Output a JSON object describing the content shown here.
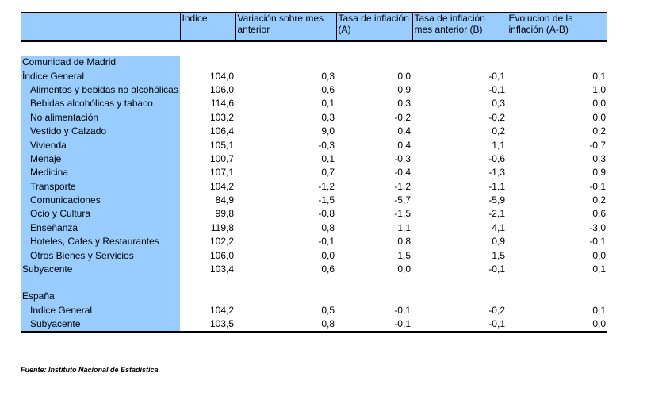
{
  "columns": [
    "",
    "Indice",
    "Variación sobre mes anterior",
    "Tasa de inflación (A)",
    "Tasa de inflación mes anterior (B)",
    "Evolucion de la inflación (A-B)"
  ],
  "madrid": {
    "title": "Comunidad de Madrid",
    "general": {
      "label": "Índice General",
      "indice": "104,0",
      "variacion": "0,3",
      "tasa_a": "0,0",
      "tasa_b": "-0,1",
      "evolucion": "0,1"
    },
    "rows": [
      {
        "label": "Alimentos y bebidas no alcohólicas",
        "indice": "106,0",
        "variacion": "0,6",
        "tasa_a": "0,9",
        "tasa_b": "-0,1",
        "evolucion": "1,0"
      },
      {
        "label": "Bebidas alcohólicas y tabaco",
        "indice": "114,6",
        "variacion": "0,1",
        "tasa_a": "0,3",
        "tasa_b": "0,3",
        "evolucion": "0,0"
      },
      {
        "label": "No alimentación",
        "indice": "103,2",
        "variacion": "0,3",
        "tasa_a": "-0,2",
        "tasa_b": "-0,2",
        "evolucion": "0,0"
      },
      {
        "label": "Vestido y Calzado",
        "indice": "106,4",
        "variacion": "9,0",
        "tasa_a": "0,4",
        "tasa_b": "0,2",
        "evolucion": "0,2"
      },
      {
        "label": "Vivienda",
        "indice": "105,1",
        "variacion": "-0,3",
        "tasa_a": "0,4",
        "tasa_b": "1,1",
        "evolucion": "-0,7"
      },
      {
        "label": "Menaje",
        "indice": "100,7",
        "variacion": "0,1",
        "tasa_a": "-0,3",
        "tasa_b": "-0,6",
        "evolucion": "0,3"
      },
      {
        "label": "Medicina",
        "indice": "107,1",
        "variacion": "0,7",
        "tasa_a": "-0,4",
        "tasa_b": "-1,3",
        "evolucion": "0,9"
      },
      {
        "label": "Transporte",
        "indice": "104,2",
        "variacion": "-1,2",
        "tasa_a": "-1,2",
        "tasa_b": "-1,1",
        "evolucion": "-0,1"
      },
      {
        "label": "Comunicaciones",
        "indice": "84,9",
        "variacion": "-1,5",
        "tasa_a": "-5,7",
        "tasa_b": "-5,9",
        "evolucion": "0,2"
      },
      {
        "label": "Ocio y Cultura",
        "indice": "99,8",
        "variacion": "-0,8",
        "tasa_a": "-1,5",
        "tasa_b": "-2,1",
        "evolucion": "0,6"
      },
      {
        "label": "Enseñanza",
        "indice": "119,8",
        "variacion": "0,8",
        "tasa_a": "1,1",
        "tasa_b": "4,1",
        "evolucion": "-3,0"
      },
      {
        "label": "Hoteles, Cafes y Restaurantes",
        "indice": "102,2",
        "variacion": "-0,1",
        "tasa_a": "0,8",
        "tasa_b": "0,9",
        "evolucion": "-0,1"
      },
      {
        "label": "Otros Bienes y Servicios",
        "indice": "106,0",
        "variacion": "0,0",
        "tasa_a": "1,5",
        "tasa_b": "1,5",
        "evolucion": "0,0"
      }
    ],
    "subyacente": {
      "label": "Subyacente",
      "indice": "103,4",
      "variacion": "0,6",
      "tasa_a": "0,0",
      "tasa_b": "-0,1",
      "evolucion": "0,1"
    }
  },
  "espana": {
    "title": "España",
    "rows": [
      {
        "label": "Indice General",
        "indice": "104,2",
        "variacion": "0,5",
        "tasa_a": "-0,1",
        "tasa_b": "-0,2",
        "evolucion": "0,1"
      },
      {
        "label": "Subyacente",
        "indice": "103,5",
        "variacion": "0,8",
        "tasa_a": "-0,1",
        "tasa_b": "-0,1",
        "evolucion": "0,0"
      }
    ]
  },
  "source": "Fuente: Instituto Nacional de Estadística",
  "colors": {
    "header_fill": "#99ccff"
  }
}
